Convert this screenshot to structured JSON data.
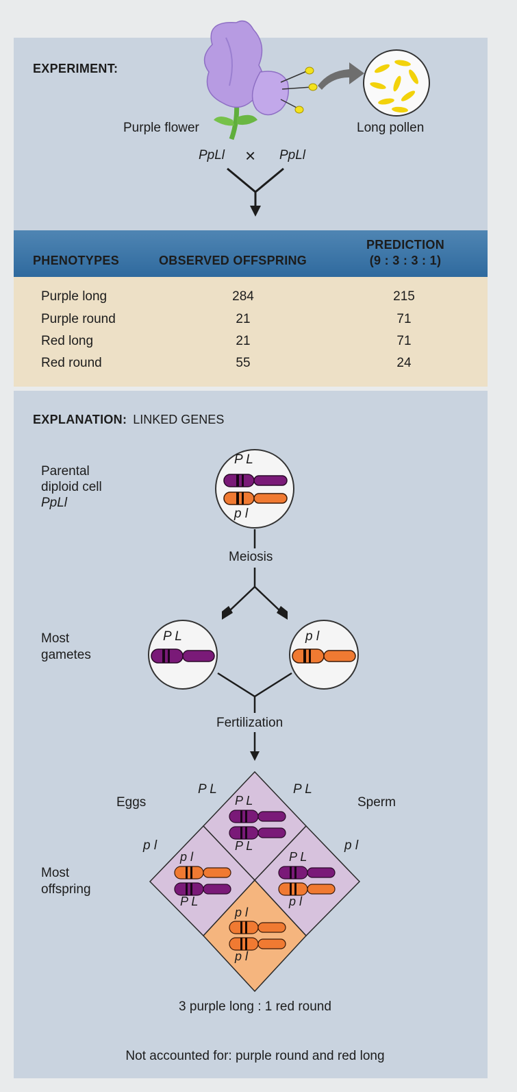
{
  "colors": {
    "panel": "#c9d3df",
    "header_bar": "#3f78a8",
    "table_body": "#ede0c6",
    "purple_chromosome": "#7a1a78",
    "orange_chromosome": "#f07a32",
    "purple_cell": "#d7c2dd",
    "orange_cell": "#f5b57e"
  },
  "experiment": {
    "heading": "EXPERIMENT:",
    "flower_label": "Purple flower",
    "pollen_label": "Long pollen",
    "cross_left": "PpLl",
    "cross_symbol": "×",
    "cross_right": "PpLl"
  },
  "table": {
    "headers": {
      "phenotypes": "PHENOTYPES",
      "observed": "OBSERVED OFFSPRING",
      "prediction_line1": "PREDICTION",
      "prediction_line2": "(9 : 3 : 3 : 1)"
    },
    "rows": [
      {
        "phenotype": "Purple long",
        "observed": "284",
        "prediction": "215"
      },
      {
        "phenotype": "Purple round",
        "observed": "21",
        "prediction": "71"
      },
      {
        "phenotype": "Red long",
        "observed": "21",
        "prediction": "71"
      },
      {
        "phenotype": "Red round",
        "observed": "55",
        "prediction": "24"
      }
    ]
  },
  "explanation": {
    "heading_bold": "EXPLANATION:",
    "heading_rest": "LINKED GENES",
    "parental_line1": "Parental",
    "parental_line2": "diploid cell",
    "parental_line3": "PpLl",
    "parental_top_alleles": "P L",
    "parental_bottom_alleles": "p l",
    "meiosis": "Meiosis",
    "gametes_line1": "Most",
    "gametes_line2": "gametes",
    "gamete_left_alleles": "P L",
    "gamete_right_alleles": "p l",
    "fertilization": "Fertilization",
    "eggs": "Eggs",
    "sperm": "Sperm",
    "eggs_top": "P L",
    "sperm_top": "P L",
    "eggs_side": "p l",
    "sperm_side": "p l",
    "offspring_line1": "Most",
    "offspring_line2": "offspring",
    "cell_top_a": "P L",
    "cell_top_b": "P L",
    "cell_left_a": "p l",
    "cell_left_b": "P L",
    "cell_right_a": "P L",
    "cell_right_b": "p l",
    "cell_bottom_a": "p l",
    "cell_bottom_b": "p l",
    "ratio": "3 purple long : 1 red round",
    "not_accounted": "Not accounted for: purple round and red long"
  }
}
